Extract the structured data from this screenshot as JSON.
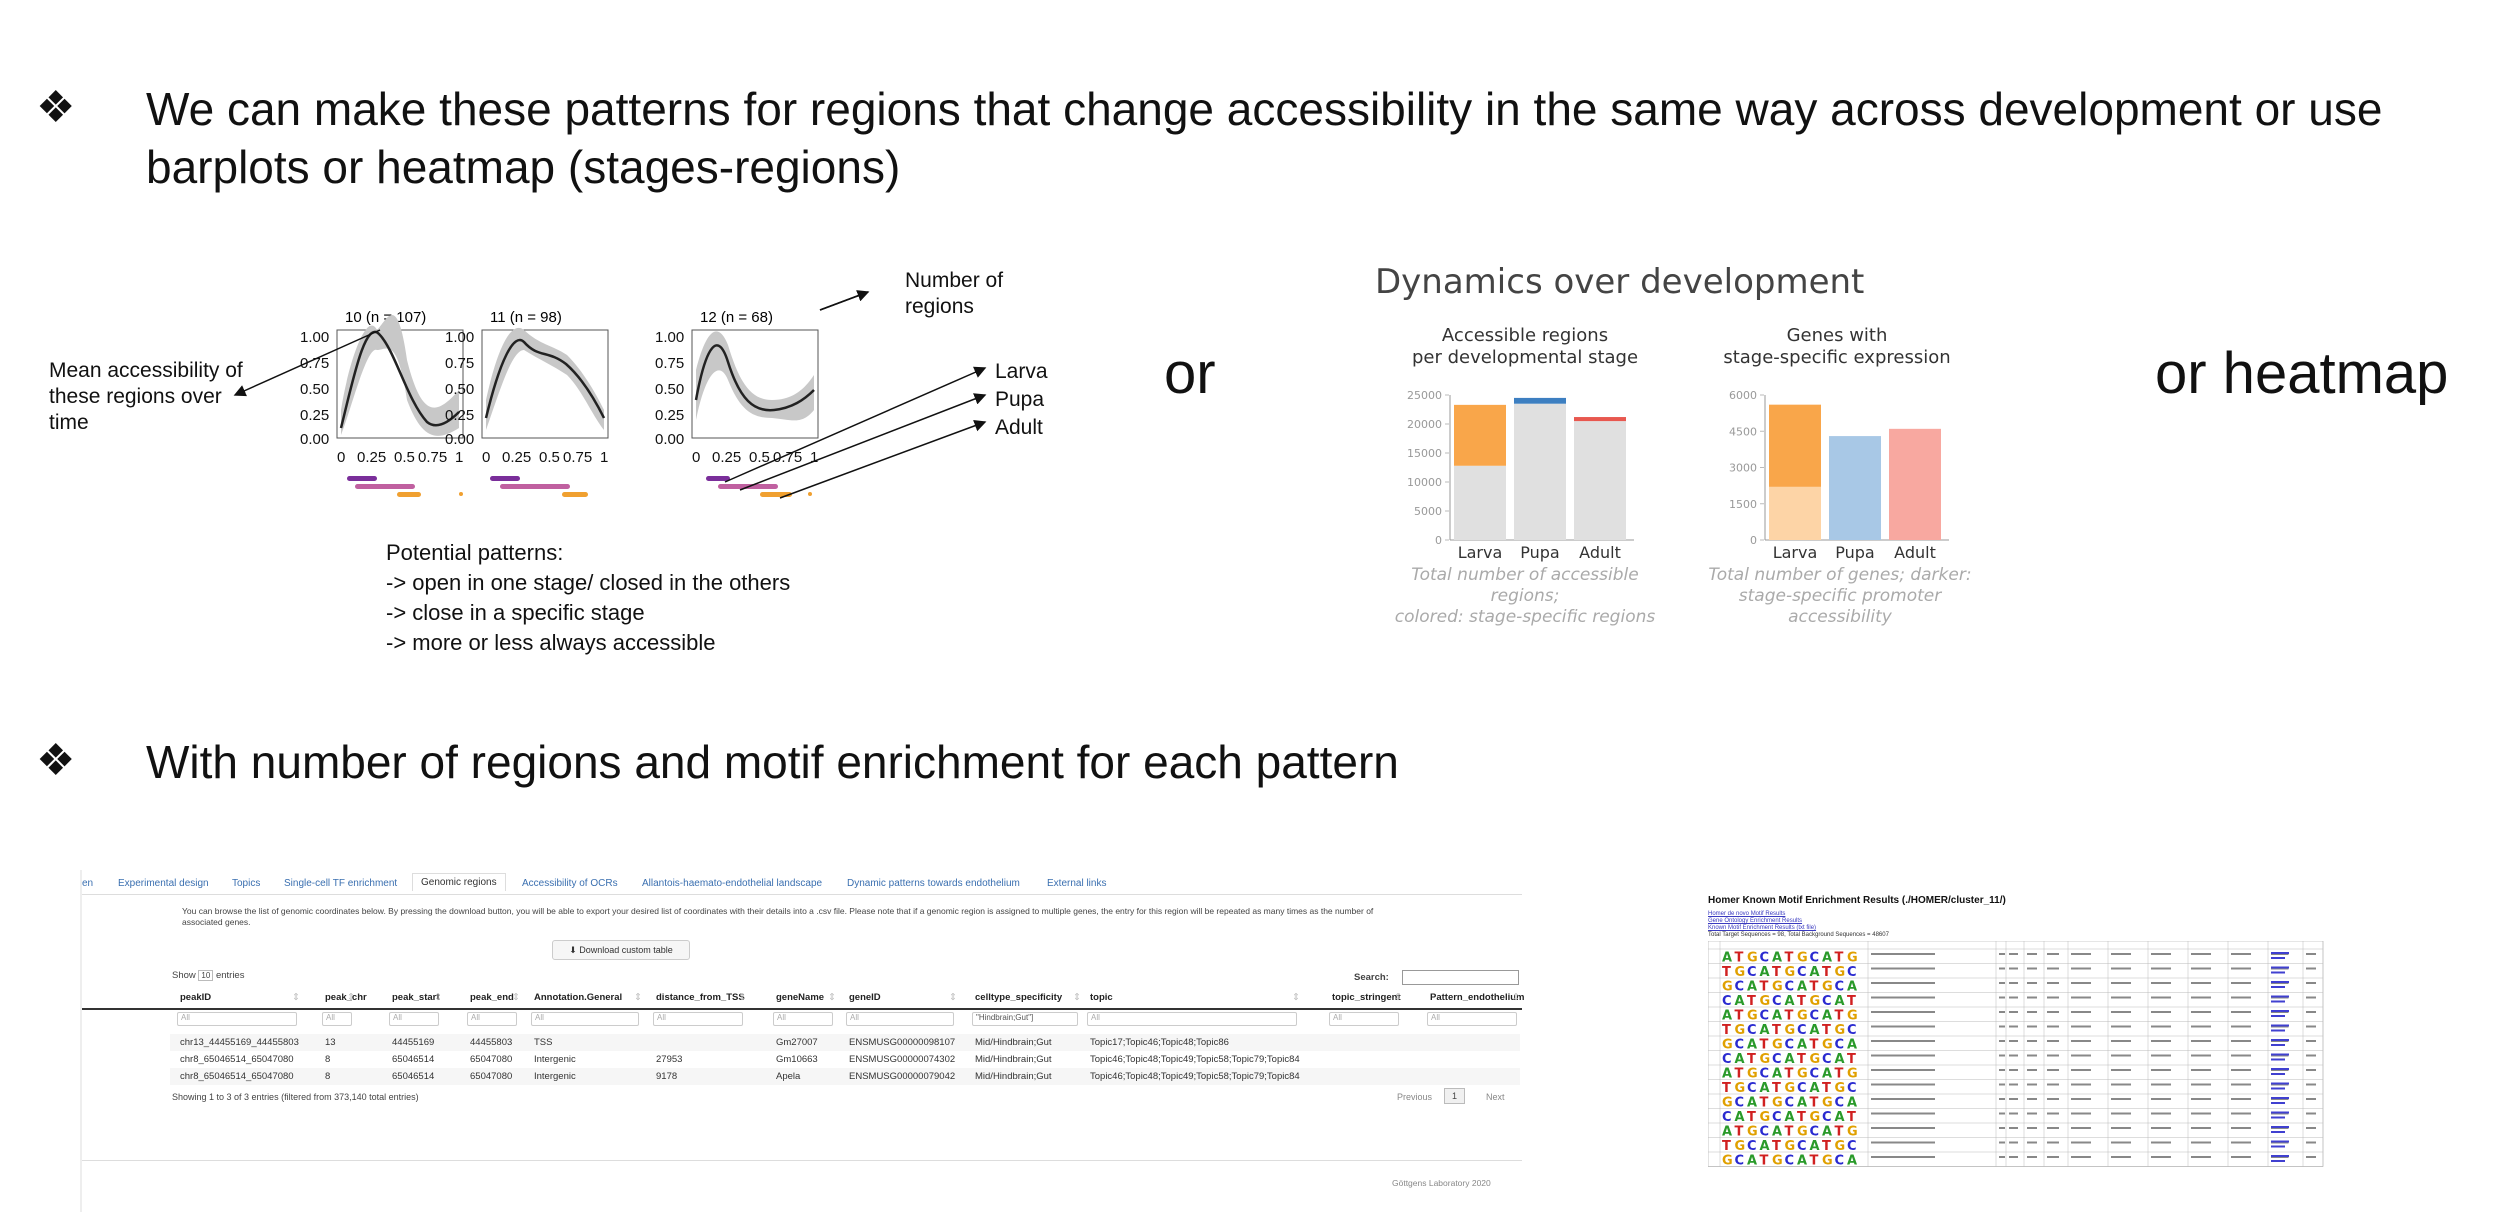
{
  "bullets": [
    {
      "symbol": "❖",
      "lines": [
        "We can make these patterns for regions that change accessibility in the same way across development or use",
        "barplots or heatmap (stages-regions)"
      ]
    },
    {
      "symbol": "❖",
      "lines": [
        "With number of regions and motif enrichment for each pattern"
      ]
    }
  ],
  "or_labels": {
    "first": "or",
    "second": "or heatmap"
  },
  "pattern_figure": {
    "annotations": {
      "mean": [
        "Mean accessibility of",
        "these regions over",
        "time"
      ],
      "number": [
        "Number of",
        "regions"
      ],
      "stages": [
        "Larva",
        "Pupa",
        "Adult"
      ]
    },
    "panels": [
      {
        "title": "10 (n = 107)"
      },
      {
        "title": "11 (n = 98)"
      },
      {
        "title": "12 (n = 68)"
      }
    ],
    "y_ticks": [
      "1.00",
      "0.75",
      "0.50",
      "0.25",
      "0.00"
    ],
    "x_ticks": [
      "0",
      "0.25",
      "0.5",
      "0.75",
      "1"
    ],
    "potential_patterns": [
      "Potential patterns:",
      "-> open in one stage/ closed in the others",
      "-> close in a specific stage",
      "-> more or less always accessible"
    ]
  },
  "dynamics": {
    "title": "Dynamics over development",
    "colors": {
      "larva": "#f9a64a",
      "larva_light": "#fdd4a6",
      "pupa": "#3d7fc1",
      "pupa_light": "#a8c8e6",
      "adult": "#e8584f",
      "adult_light": "#f8a8a0",
      "grey": "#e0e0e0"
    },
    "charts": [
      {
        "title": [
          "Accessible regions",
          "per developmental stage"
        ],
        "type": "bar",
        "y_ticks": [
          "25000",
          "20000",
          "15000",
          "10000",
          "5000",
          "0"
        ],
        "ylim": [
          0,
          25000
        ],
        "categories": [
          "Larva",
          "Pupa",
          "Adult"
        ],
        "total": [
          23300,
          24500,
          21200
        ],
        "stage_specific": [
          10500,
          1000,
          700
        ],
        "caption": [
          "Total number of accessible regions;",
          "colored: stage-specific regions"
        ]
      },
      {
        "title": [
          "Genes with",
          "stage-specific expression"
        ],
        "type": "bar",
        "y_ticks": [
          "6000",
          "4500",
          "3000",
          "1500",
          "0"
        ],
        "ylim": [
          0,
          6000
        ],
        "categories": [
          "Larva",
          "Pupa",
          "Adult"
        ],
        "total": [
          5600,
          4300,
          4600
        ],
        "darker": [
          2200,
          4300,
          4600
        ],
        "caption": [
          "Total number of genes; darker:",
          "stage-specific promoter accessibility"
        ]
      }
    ]
  },
  "webapp": {
    "tabs": [
      "en",
      "Experimental design",
      "Topics",
      "Single-cell TF enrichment",
      "Genomic regions",
      "Accessibility of OCRs",
      "Allantois-haemato-endothelial landscape",
      "Dynamic patterns towards endothelium",
      "External links"
    ],
    "description": "You can browse the list of genomic coordinates below. By pressing the download button, you will be able to export your desired list of coordinates with their details into a .csv file. Please note that if a genomic region is assigned to multiple genes, the entry for this region will be repeated as many times as the number of associated genes.",
    "download_label": "Download custom table",
    "show_label": "Show",
    "show_value": "10",
    "entries_label": "entries",
    "search_label": "Search:",
    "columns": [
      "peakID",
      "peak_chr",
      "peak_start",
      "peak_end",
      "Annotation.General",
      "distance_from_TSS",
      "geneName",
      "geneID",
      "celltype_specificity",
      "topic",
      "topic_stringent",
      "Pattern_endothelium"
    ],
    "filter_placeholder": "All",
    "celltype_filter": "\"Hindbrain;Gut\"]",
    "rows": [
      [
        "chr13_44455169_44455803",
        "13",
        "44455169",
        "44455803",
        "TSS",
        "",
        "Gm27007",
        "ENSMUSG00000098107",
        "Mid/Hindbrain;Gut",
        "Topic17;Topic46;Topic48;Topic86",
        "",
        ""
      ],
      [
        "chr8_65046514_65047080",
        "8",
        "65046514",
        "65047080",
        "Intergenic",
        "27953",
        "Gm10663",
        "ENSMUSG00000074302",
        "Mid/Hindbrain;Gut",
        "Topic46;Topic48;Topic49;Topic58;Topic79;Topic84",
        "",
        ""
      ],
      [
        "chr8_65046514_65047080",
        "8",
        "65046514",
        "65047080",
        "Intergenic",
        "9178",
        "Apela",
        "ENSMUSG00000079042",
        "Mid/Hindbrain;Gut",
        "Topic46;Topic48;Topic49;Topic58;Topic79;Topic84",
        "",
        ""
      ]
    ],
    "info": "Showing 1 to 3 of 3 entries (filtered from 373,140 total entries)",
    "pager": {
      "previous": "Previous",
      "page": "1",
      "next": "Next"
    },
    "footer": "Göttgens Laboratory 2020"
  },
  "homer": {
    "title": "Homer Known Motif Enrichment Results (./HOMER/cluster_11/)",
    "links": [
      "Homer de novo Motif Results",
      "Gene Ontology Enrichment Results",
      "Known Motif Enrichment Results (txt file)",
      "Total Target Sequences = 98, Total Background Sequences = 48607"
    ],
    "rows": 15
  }
}
